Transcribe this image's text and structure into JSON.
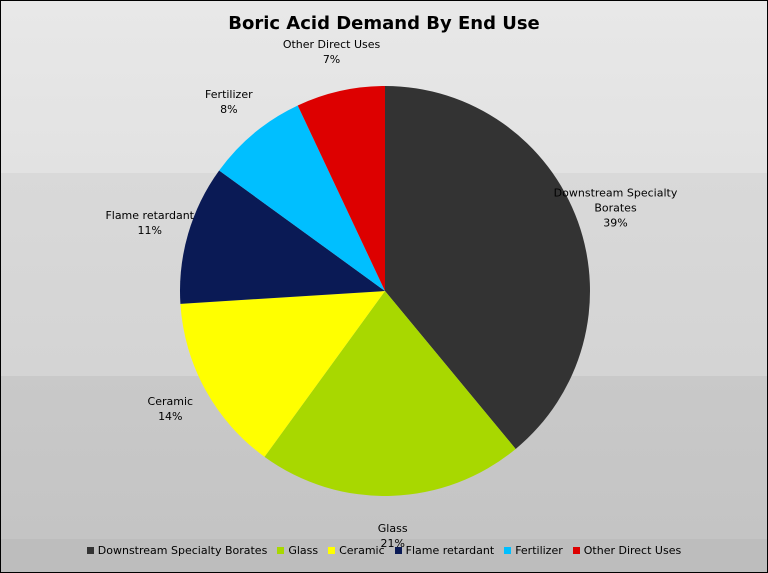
{
  "chart_data": {
    "type": "pie",
    "title": "Boric Acid Demand By End Use",
    "categories": [
      "Downstream Specialty Borates",
      "Glass",
      "Ceramic",
      "Flame retardant",
      "Fertilizer",
      "Other Direct Uses"
    ],
    "values": [
      39,
      21,
      14,
      11,
      8,
      7
    ],
    "value_labels": [
      "39%",
      "21%",
      "14%",
      "11%",
      "8%",
      "7%"
    ],
    "colors": [
      "#333333",
      "#a8d800",
      "#ffff00",
      "#0a1a55",
      "#00bfff",
      "#dd0000"
    ],
    "legend": "bottom"
  }
}
